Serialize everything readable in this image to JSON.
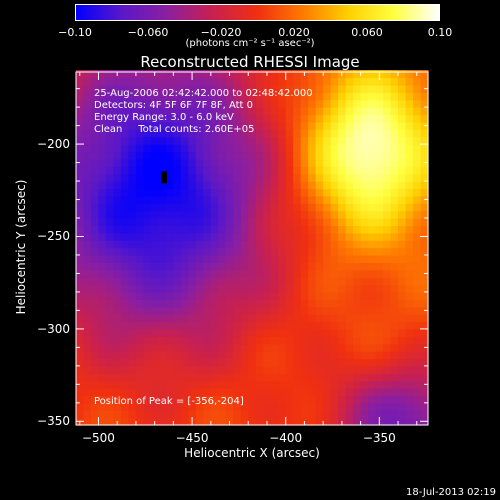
{
  "chart_data": {
    "type": "heatmap",
    "title": "Reconstructed RHESSI Image",
    "xlabel": "Heliocentric X (arcsec)",
    "ylabel": "Heliocentric Y (arcsec)",
    "xlim": [
      -512,
      -324
    ],
    "ylim": [
      -352,
      -161
    ],
    "x_ticks": [
      -500,
      -450,
      -400,
      -350
    ],
    "x_tick_labels": [
      "−500",
      "−450",
      "−400",
      "−350"
    ],
    "y_ticks": [
      -200,
      -250,
      -300,
      -350
    ],
    "y_tick_labels": [
      "−200",
      "−250",
      "−300",
      "−350"
    ],
    "colorbar": {
      "range": [
        -0.1,
        0.1
      ],
      "ticks": [
        -0.1,
        -0.06,
        -0.02,
        0.02,
        0.06,
        0.1
      ],
      "tick_labels": [
        "−0.10",
        "−0.060",
        "−0.020",
        "0.020",
        "0.060",
        "0.10"
      ],
      "units": "(photons cm⁻² s⁻¹ asec⁻²)",
      "colors": [
        "#0000ff",
        "#5a18c8",
        "#8b1fa0",
        "#c82050",
        "#f03010",
        "#ff7a00",
        "#ffd000",
        "#ffff40",
        "#ffffff"
      ]
    },
    "annotations": [
      "25-Aug-2006 02:42:42.000 to 02:48:42.000",
      "Detectors: 4F 5F 6F 7F 8F, Att 0",
      "Energy Range: 3.0 - 6.0 keV",
      "Clean     Total counts: 2.60E+05"
    ],
    "peak_label": "Position of Peak = [-356,-204]",
    "peak_position": [
      -356,
      -204
    ],
    "blue_blob_center": [
      -470,
      -225
    ],
    "grid": false,
    "legend": "none"
  },
  "footer": {
    "timestamp": "18-Jul-2013 02:19"
  }
}
